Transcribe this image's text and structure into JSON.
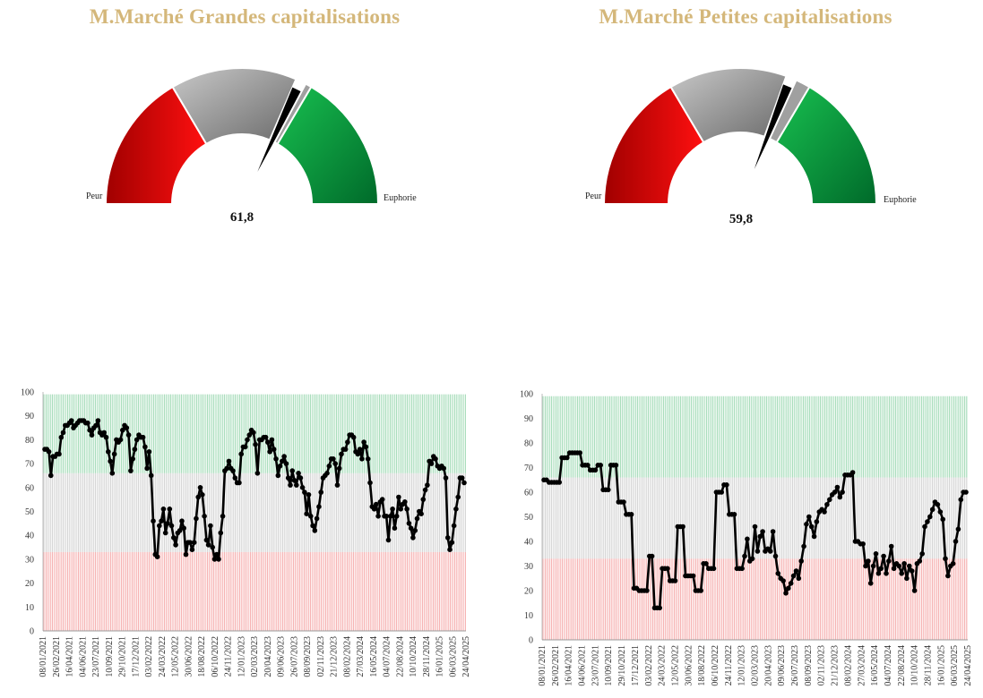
{
  "gauges": [
    {
      "title": "M.Marché Grandes capitalisations",
      "value_label": "61,8",
      "value": 61.8,
      "left_label": "Peur",
      "right_label": "Euphorie",
      "segments": [
        {
          "name": "peur",
          "from": 0,
          "to": 33,
          "color": "#e81c1c"
        },
        {
          "name": "neutre",
          "from": 33,
          "to": 63,
          "color": "#a0a0a0"
        },
        {
          "name": "marker",
          "from": 63,
          "to": 65.5,
          "color": "#000000"
        },
        {
          "name": "neutre-2",
          "from": 65.5,
          "to": 67,
          "color": "#a0a0a0"
        },
        {
          "name": "euphorie",
          "from": 67,
          "to": 100,
          "color": "#12a84a"
        }
      ]
    },
    {
      "title": "M.Marché Petites capitalisations",
      "value_label": "59,8",
      "value": 59.8,
      "left_label": "Peur",
      "right_label": "Euphorie",
      "segments": [
        {
          "name": "peur",
          "from": 0,
          "to": 33,
          "color": "#e81c1c"
        },
        {
          "name": "neutre",
          "from": 33,
          "to": 61,
          "color": "#a0a0a0"
        },
        {
          "name": "marker",
          "from": 61,
          "to": 63.5,
          "color": "#000000"
        },
        {
          "name": "neutre-2",
          "from": 63.5,
          "to": 67,
          "color": "#a0a0a0"
        },
        {
          "name": "euphorie",
          "from": 67,
          "to": 100,
          "color": "#12a84a"
        }
      ]
    }
  ],
  "chart_data": [
    {
      "type": "line",
      "title": "",
      "xlabel": "",
      "ylabel": "",
      "ylim": [
        0,
        100
      ],
      "yticks": [
        0,
        10,
        20,
        30,
        40,
        50,
        60,
        70,
        80,
        90,
        100
      ],
      "zones": [
        {
          "name": "peur",
          "from": 0,
          "to": 33,
          "color": "#f4a5a5"
        },
        {
          "name": "neutre",
          "from": 33,
          "to": 66,
          "color": "#cfcfcf"
        },
        {
          "name": "euphorie",
          "from": 66,
          "to": 99,
          "color": "#9ad8b0"
        }
      ],
      "x_tick_labels": [
        "08/01/2021",
        "26/02/2021",
        "16/04/2021",
        "04/06/2021",
        "23/07/2021",
        "10/09/2021",
        "29/10/2021",
        "17/12/2021",
        "03/02/2022",
        "24/03/2022",
        "12/05/2022",
        "30/06/2022",
        "18/08/2022",
        "06/10/2022",
        "24/11/2022",
        "12/01/2023",
        "02/03/2023",
        "20/04/2023",
        "09/06/2023",
        "26/07/2023",
        "08/09/2023",
        "02/11/2023",
        "21/12/2023",
        "08/02/2024",
        "27/03/2024",
        "16/05/2024",
        "04/07/2024",
        "22/08/2024",
        "10/10/2024",
        "28/11/2024",
        "16/01/2025",
        "06/03/2025",
        "24/04/2025"
      ],
      "series": [
        {
          "name": "Grandes capitalisations",
          "color": "#000000",
          "values": [
            76,
            76,
            75,
            65,
            73,
            73,
            74,
            74,
            81,
            83,
            86,
            86,
            87,
            88,
            85,
            86,
            87,
            88,
            88,
            88,
            87,
            87,
            84,
            82,
            85,
            86,
            88,
            83,
            82,
            83,
            81,
            75,
            71,
            66,
            74,
            80,
            79,
            80,
            84,
            86,
            85,
            82,
            67,
            72,
            76,
            80,
            82,
            81,
            81,
            77,
            68,
            75,
            65,
            46,
            32,
            31,
            44,
            46,
            51,
            41,
            45,
            51,
            44,
            39,
            36,
            41,
            42,
            46,
            43,
            32,
            37,
            37,
            34,
            37,
            47,
            56,
            60,
            57,
            48,
            38,
            36,
            44,
            35,
            30,
            32,
            30,
            41,
            48,
            67,
            68,
            71,
            68,
            67,
            64,
            62,
            62,
            74,
            77,
            77,
            80,
            82,
            84,
            83,
            78,
            66,
            80,
            80,
            81,
            81,
            79,
            75,
            80,
            76,
            72,
            65,
            69,
            71,
            73,
            70,
            64,
            61,
            67,
            63,
            61,
            66,
            64,
            60,
            58,
            49,
            57,
            48,
            44,
            42,
            47,
            52,
            58,
            64,
            65,
            66,
            69,
            72,
            72,
            70,
            61,
            68,
            74,
            76,
            76,
            79,
            82,
            82,
            81,
            75,
            74,
            76,
            72,
            79,
            77,
            72,
            62,
            52,
            51,
            53,
            48,
            54,
            55,
            48,
            48,
            38,
            48,
            51,
            43,
            48,
            56,
            51,
            53,
            54,
            51,
            45,
            43,
            39,
            42,
            47,
            50,
            49,
            55,
            59,
            61,
            71,
            70,
            73,
            72,
            69,
            68,
            69,
            68,
            64,
            39,
            34,
            37,
            44,
            51,
            56,
            64,
            64,
            62
          ]
        }
      ]
    },
    {
      "type": "line",
      "title": "",
      "xlabel": "",
      "ylabel": "",
      "ylim": [
        0,
        100
      ],
      "yticks": [
        0,
        10,
        20,
        30,
        40,
        50,
        60,
        70,
        80,
        90,
        100
      ],
      "zones": [
        {
          "name": "peur",
          "from": 0,
          "to": 33,
          "color": "#f4a5a5"
        },
        {
          "name": "neutre",
          "from": 33,
          "to": 66,
          "color": "#cfcfcf"
        },
        {
          "name": "euphorie",
          "from": 66,
          "to": 99,
          "color": "#9ad8b0"
        }
      ],
      "x_tick_labels": [
        "08/01/2021",
        "26/02/2021",
        "16/04/2021",
        "04/06/2021",
        "23/07/2021",
        "10/09/2021",
        "29/10/2021",
        "17/12/2021",
        "03/02/2022",
        "24/03/2022",
        "12/05/2022",
        "30/06/2022",
        "18/08/2022",
        "06/10/2022",
        "24/11/2022",
        "12/01/2023",
        "02/03/2023",
        "20/04/2023",
        "09/06/2023",
        "26/07/2023",
        "08/09/2023",
        "02/11/2023",
        "21/12/2023",
        "08/02/2024",
        "27/03/2024",
        "16/05/2024",
        "04/07/2024",
        "22/08/2024",
        "10/10/2024",
        "28/11/2024",
        "16/01/2025",
        "06/03/2025",
        "24/04/2025"
      ],
      "series": [
        {
          "name": "Petites capitalisations",
          "color": "#000000",
          "values": [
            65,
            65,
            64,
            64,
            64,
            64,
            64,
            74,
            74,
            74,
            76,
            76,
            76,
            76,
            76,
            71,
            71,
            71,
            69,
            69,
            69,
            71,
            71,
            61,
            61,
            61,
            71,
            71,
            71,
            56,
            56,
            56,
            51,
            51,
            51,
            21,
            21,
            20,
            20,
            20,
            20,
            34,
            34,
            13,
            13,
            13,
            29,
            29,
            29,
            24,
            24,
            24,
            46,
            46,
            46,
            26,
            26,
            26,
            26,
            20,
            20,
            20,
            31,
            31,
            29,
            29,
            29,
            60,
            60,
            60,
            63,
            63,
            51,
            51,
            51,
            29,
            29,
            29,
            34,
            41,
            32,
            33,
            46,
            36,
            42,
            44,
            36,
            37,
            36,
            44,
            34,
            27,
            25,
            24,
            19,
            21,
            23,
            26,
            28,
            25,
            32,
            38,
            47,
            50,
            46,
            42,
            48,
            52,
            53,
            52,
            55,
            57,
            59,
            60,
            62,
            58,
            60,
            67,
            67,
            67,
            68,
            40,
            40,
            39,
            39,
            30,
            32,
            23,
            30,
            35,
            27,
            29,
            34,
            27,
            32,
            38,
            29,
            31,
            30,
            27,
            31,
            25,
            30,
            28,
            20,
            31,
            32,
            35,
            46,
            48,
            50,
            53,
            56,
            55,
            52,
            49,
            33,
            26,
            30,
            31,
            40,
            45,
            57,
            60,
            60
          ]
        }
      ]
    }
  ]
}
